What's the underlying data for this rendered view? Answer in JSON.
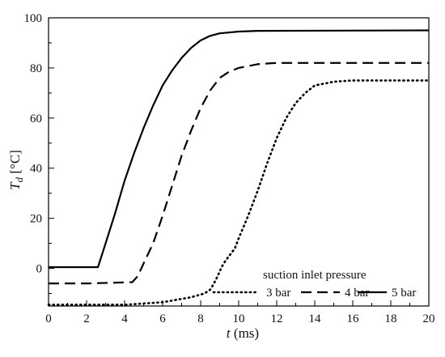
{
  "chart_data": {
    "type": "line",
    "xlabel": {
      "symbol": "t",
      "unit": " (ms)"
    },
    "ylabel": {
      "symbol": "T",
      "subscript": "d",
      "unit": " [°C]"
    },
    "xlim": [
      0,
      20
    ],
    "ylim": [
      -15,
      100
    ],
    "x_ticks": [
      0,
      2,
      4,
      6,
      8,
      10,
      12,
      14,
      16,
      18,
      20
    ],
    "y_ticks": [
      0,
      20,
      40,
      60,
      80,
      100
    ],
    "grid": false,
    "legend": {
      "title": "suction inlet pressure",
      "placement": "bottom-right"
    },
    "series": [
      {
        "name": "3 bar",
        "style": "dotted",
        "color": "#000000",
        "points": [
          [
            0,
            -14.5
          ],
          [
            4,
            -14.5
          ],
          [
            6,
            -13.5
          ],
          [
            7.5,
            -11.5
          ],
          [
            8.2,
            -10
          ],
          [
            8.5,
            -8.5
          ],
          [
            8.7,
            -6
          ],
          [
            8.9,
            -3
          ],
          [
            9.1,
            0.5
          ],
          [
            9.3,
            3
          ],
          [
            9.6,
            6
          ],
          [
            9.8,
            8
          ],
          [
            10,
            12
          ],
          [
            10.5,
            21
          ],
          [
            11,
            31
          ],
          [
            11.5,
            42
          ],
          [
            12,
            52
          ],
          [
            12.5,
            60
          ],
          [
            13,
            66
          ],
          [
            13.5,
            70
          ],
          [
            14,
            73
          ],
          [
            15,
            74.5
          ],
          [
            16,
            75
          ],
          [
            20,
            75
          ]
        ]
      },
      {
        "name": "4 bar",
        "style": "dashed",
        "color": "#000000",
        "points": [
          [
            0,
            -6
          ],
          [
            2,
            -6
          ],
          [
            4.4,
            -5.5
          ],
          [
            4.7,
            -3
          ],
          [
            5,
            2
          ],
          [
            5.5,
            10
          ],
          [
            6,
            21
          ],
          [
            6.5,
            33
          ],
          [
            7,
            45
          ],
          [
            7.5,
            55
          ],
          [
            8,
            64
          ],
          [
            8.5,
            71
          ],
          [
            9,
            76
          ],
          [
            9.5,
            78.5
          ],
          [
            10,
            80
          ],
          [
            11,
            81.5
          ],
          [
            12,
            82
          ],
          [
            20,
            82
          ]
        ]
      },
      {
        "name": "5 bar",
        "style": "solid",
        "color": "#000000",
        "points": [
          [
            0,
            0.5
          ],
          [
            2.6,
            0.5
          ],
          [
            3,
            10
          ],
          [
            3.5,
            22
          ],
          [
            4,
            35
          ],
          [
            4.5,
            46
          ],
          [
            5,
            56
          ],
          [
            5.5,
            65
          ],
          [
            6,
            73
          ],
          [
            6.5,
            79
          ],
          [
            7,
            84
          ],
          [
            7.5,
            88
          ],
          [
            8,
            91
          ],
          [
            8.5,
            92.8
          ],
          [
            9,
            93.8
          ],
          [
            10,
            94.5
          ],
          [
            11,
            94.8
          ],
          [
            20,
            95
          ]
        ]
      }
    ]
  }
}
